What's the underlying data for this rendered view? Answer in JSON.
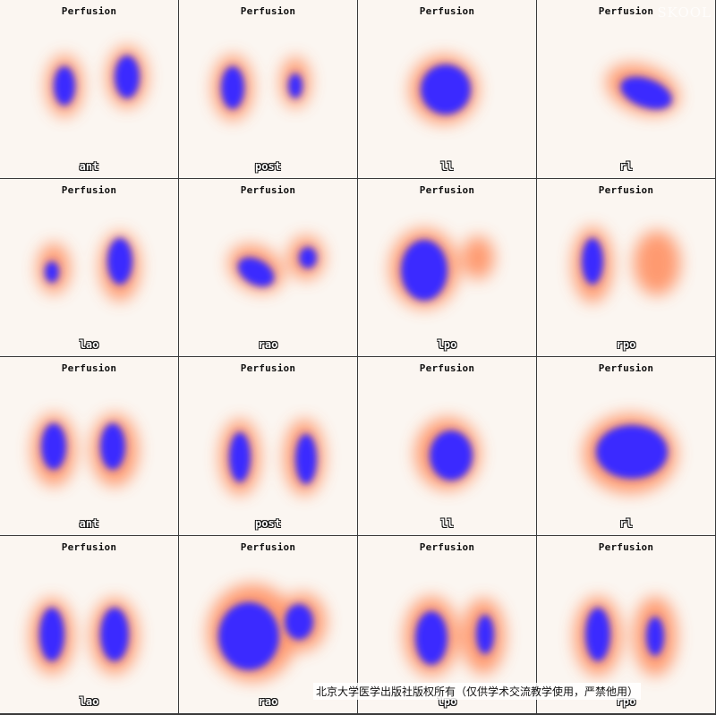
{
  "panels": [
    {
      "title": "Perfusion",
      "view": "ant"
    },
    {
      "title": "Perfusion",
      "view": "post"
    },
    {
      "title": "Perfusion",
      "view": "ll"
    },
    {
      "title": "Perfusion",
      "view": "rl"
    },
    {
      "title": "Perfusion",
      "view": "lao"
    },
    {
      "title": "Perfusion",
      "view": "rao"
    },
    {
      "title": "Perfusion",
      "view": "lpo"
    },
    {
      "title": "Perfusion",
      "view": "rpo"
    },
    {
      "title": "Perfusion",
      "view": "ant"
    },
    {
      "title": "Perfusion",
      "view": "post"
    },
    {
      "title": "Perfusion",
      "view": "ll"
    },
    {
      "title": "Perfusion",
      "view": "rl"
    },
    {
      "title": "Perfusion",
      "view": "lao"
    },
    {
      "title": "Perfusion",
      "view": "rao"
    },
    {
      "title": "Perfusion",
      "view": "lpo"
    },
    {
      "title": "Perfusion",
      "view": "rpo"
    }
  ],
  "watermark": "SKOOL",
  "copyright": "北京大学医学出版社版权所有（仅供学术交流教学使用，严禁他用）",
  "colors": {
    "hot": "#1a1aff",
    "mid": "#ff5a1a",
    "glow": "#ffb48a",
    "bg": "#fbf6f1"
  }
}
